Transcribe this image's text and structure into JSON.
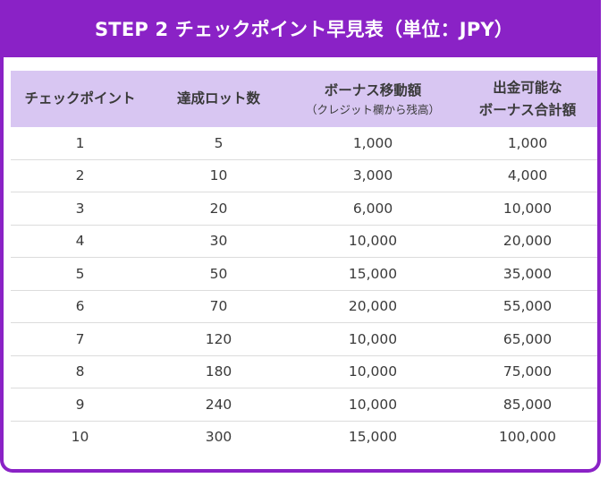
{
  "title": "STEP 2 チェックポイント早見表（単位：JPY）",
  "headers": {
    "checkpoint": "チェックポイント",
    "lots": "達成ロット数",
    "bonus_move_line1": "ボーナス移動額",
    "bonus_move_line2": "（クレジット欄から残高）",
    "withdrawable_line1": "出金可能な",
    "withdrawable_line2": "ボーナス合計額"
  },
  "rows": [
    {
      "checkpoint": "1",
      "lots": "5",
      "bonus_move": "1,000",
      "withdrawable": "1,000"
    },
    {
      "checkpoint": "2",
      "lots": "10",
      "bonus_move": "3,000",
      "withdrawable": "4,000"
    },
    {
      "checkpoint": "3",
      "lots": "20",
      "bonus_move": "6,000",
      "withdrawable": "10,000"
    },
    {
      "checkpoint": "4",
      "lots": "30",
      "bonus_move": "10,000",
      "withdrawable": "20,000"
    },
    {
      "checkpoint": "5",
      "lots": "50",
      "bonus_move": "15,000",
      "withdrawable": "35,000"
    },
    {
      "checkpoint": "6",
      "lots": "70",
      "bonus_move": "20,000",
      "withdrawable": "55,000"
    },
    {
      "checkpoint": "7",
      "lots": "120",
      "bonus_move": "10,000",
      "withdrawable": "65,000"
    },
    {
      "checkpoint": "8",
      "lots": "180",
      "bonus_move": "10,000",
      "withdrawable": "75,000"
    },
    {
      "checkpoint": "9",
      "lots": "240",
      "bonus_move": "10,000",
      "withdrawable": "85,000"
    },
    {
      "checkpoint": "10",
      "lots": "300",
      "bonus_move": "15,000",
      "withdrawable": "100,000"
    }
  ],
  "colors": {
    "title_bg": "#8a22c6",
    "header_bg": "#d8c6f2"
  }
}
